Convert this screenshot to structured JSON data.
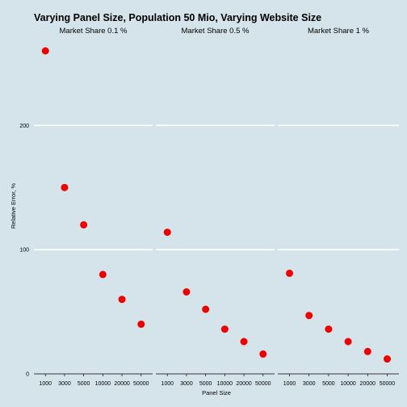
{
  "chart_data": {
    "type": "scatter",
    "title": "Varying Panel Size, Population 50 Mio, Varying Website Size",
    "xlabel": "Panel Size",
    "ylabel": "Relative Error, %",
    "categories": [
      "1000",
      "3000",
      "5000",
      "10000",
      "20000",
      "50000"
    ],
    "ylim": [
      0,
      260
    ],
    "yticks": [
      0,
      100,
      200
    ],
    "grid": true,
    "point_color": "#ee0000",
    "gridline_color": "#ffffff",
    "background_color": "#d5e4eb",
    "panels": [
      {
        "title": "Market Share 0.1 %",
        "values": [
          260,
          150,
          120,
          80,
          60,
          40
        ]
      },
      {
        "title": "Market Share 0.5 %",
        "values": [
          114,
          66,
          52,
          36,
          26,
          16
        ]
      },
      {
        "title": "Market Share 1 %",
        "values": [
          81,
          47,
          36,
          26,
          18,
          12
        ]
      }
    ]
  }
}
